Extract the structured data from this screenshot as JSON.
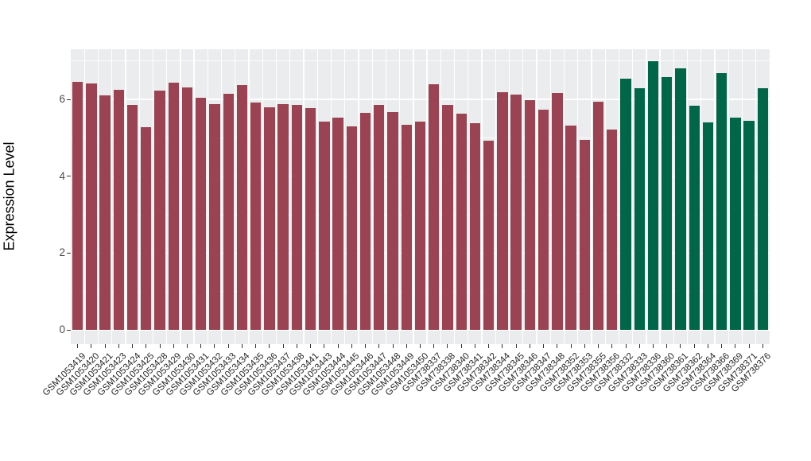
{
  "chart_data": {
    "type": "bar",
    "title": "",
    "xlabel": "",
    "ylabel": "Expression Level",
    "ylim": [
      0,
      7.3
    ],
    "yticks_major": [
      0,
      2,
      4,
      6
    ],
    "yticks_minor": [
      1,
      3,
      5,
      7
    ],
    "grid": true,
    "legend": false,
    "panel_background": "#ebeced",
    "gridline_color": "#ffffff",
    "group_colors": {
      "group1": "#9b4352",
      "group2": "#006648"
    },
    "bars": [
      {
        "label": "GSM1053419",
        "value": 6.45,
        "group": "group1"
      },
      {
        "label": "GSM1053420",
        "value": 6.41,
        "group": "group1"
      },
      {
        "label": "GSM1053421",
        "value": 6.11,
        "group": "group1"
      },
      {
        "label": "GSM1053423",
        "value": 6.25,
        "group": "group1"
      },
      {
        "label": "GSM1053424",
        "value": 5.85,
        "group": "group1"
      },
      {
        "label": "GSM1053425",
        "value": 5.28,
        "group": "group1"
      },
      {
        "label": "GSM1053428",
        "value": 6.23,
        "group": "group1"
      },
      {
        "label": "GSM1053429",
        "value": 6.43,
        "group": "group1"
      },
      {
        "label": "GSM1053430",
        "value": 6.31,
        "group": "group1"
      },
      {
        "label": "GSM1053431",
        "value": 6.04,
        "group": "group1"
      },
      {
        "label": "GSM1053432",
        "value": 5.87,
        "group": "group1"
      },
      {
        "label": "GSM1053433",
        "value": 6.14,
        "group": "group1"
      },
      {
        "label": "GSM1053434",
        "value": 6.37,
        "group": "group1"
      },
      {
        "label": "GSM1053435",
        "value": 5.91,
        "group": "group1"
      },
      {
        "label": "GSM1053436",
        "value": 5.8,
        "group": "group1"
      },
      {
        "label": "GSM1053437",
        "value": 5.88,
        "group": "group1"
      },
      {
        "label": "GSM1053438",
        "value": 5.85,
        "group": "group1"
      },
      {
        "label": "GSM1053441",
        "value": 5.77,
        "group": "group1"
      },
      {
        "label": "GSM1053443",
        "value": 5.42,
        "group": "group1"
      },
      {
        "label": "GSM1053444",
        "value": 5.52,
        "group": "group1"
      },
      {
        "label": "GSM1053445",
        "value": 5.3,
        "group": "group1"
      },
      {
        "label": "GSM1053446",
        "value": 5.64,
        "group": "group1"
      },
      {
        "label": "GSM1053447",
        "value": 5.85,
        "group": "group1"
      },
      {
        "label": "GSM1053448",
        "value": 5.66,
        "group": "group1"
      },
      {
        "label": "GSM1053449",
        "value": 5.33,
        "group": "group1"
      },
      {
        "label": "GSM1053450",
        "value": 5.43,
        "group": "group1"
      },
      {
        "label": "GSM738337",
        "value": 6.39,
        "group": "group1"
      },
      {
        "label": "GSM738338",
        "value": 5.85,
        "group": "group1"
      },
      {
        "label": "GSM738340",
        "value": 5.63,
        "group": "group1"
      },
      {
        "label": "GSM738341",
        "value": 5.39,
        "group": "group1"
      },
      {
        "label": "GSM738342",
        "value": 4.92,
        "group": "group1"
      },
      {
        "label": "GSM738344",
        "value": 6.18,
        "group": "group1"
      },
      {
        "label": "GSM738345",
        "value": 6.12,
        "group": "group1"
      },
      {
        "label": "GSM738346",
        "value": 5.99,
        "group": "group1"
      },
      {
        "label": "GSM738347",
        "value": 5.73,
        "group": "group1"
      },
      {
        "label": "GSM738348",
        "value": 6.17,
        "group": "group1"
      },
      {
        "label": "GSM738352",
        "value": 5.32,
        "group": "group1"
      },
      {
        "label": "GSM738353",
        "value": 4.94,
        "group": "group1"
      },
      {
        "label": "GSM738355",
        "value": 5.93,
        "group": "group1"
      },
      {
        "label": "GSM738356",
        "value": 5.21,
        "group": "group1"
      },
      {
        "label": "GSM738332",
        "value": 6.54,
        "group": "group2"
      },
      {
        "label": "GSM738333",
        "value": 6.3,
        "group": "group2"
      },
      {
        "label": "GSM738336",
        "value": 6.99,
        "group": "group2"
      },
      {
        "label": "GSM738360",
        "value": 6.59,
        "group": "group2"
      },
      {
        "label": "GSM738361",
        "value": 6.8,
        "group": "group2"
      },
      {
        "label": "GSM738362",
        "value": 5.83,
        "group": "group2"
      },
      {
        "label": "GSM738364",
        "value": 5.41,
        "group": "group2"
      },
      {
        "label": "GSM738366",
        "value": 6.68,
        "group": "group2"
      },
      {
        "label": "GSM738369",
        "value": 5.52,
        "group": "group2"
      },
      {
        "label": "GSM738371",
        "value": 5.44,
        "group": "group2"
      },
      {
        "label": "GSM738376",
        "value": 6.3,
        "group": "group2"
      }
    ]
  }
}
